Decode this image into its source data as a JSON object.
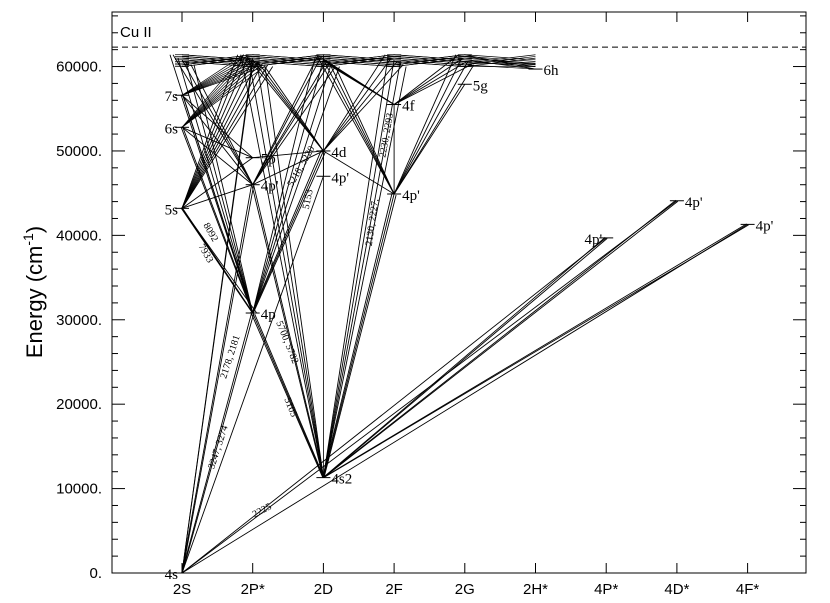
{
  "chart_data": {
    "type": "diagram",
    "title": "Cu II",
    "ylabel": "Energy (cm",
    "ylabel_sup": "-1",
    "ylabel_close": ")",
    "ylim": [
      0,
      64000
    ],
    "yticks": [
      0,
      10000,
      20000,
      30000,
      40000,
      50000,
      60000
    ],
    "ytick_labels": [
      "0.",
      "10000.",
      "20000.",
      "30000.",
      "40000.",
      "50000.",
      "60000."
    ],
    "ionization_limit": 62300,
    "categories": [
      "2S",
      "2P*",
      "2D",
      "2F",
      "2G",
      "2H*",
      "4P*",
      "4D*",
      "4F*"
    ],
    "levels": [
      {
        "col": 0,
        "energy": 0,
        "label": "4s",
        "label_side": "left"
      },
      {
        "col": 0,
        "energy": 43200,
        "label": "5s",
        "label_side": "left"
      },
      {
        "col": 0,
        "energy": 52800,
        "label": "6s",
        "label_side": "left"
      },
      {
        "col": 0,
        "energy": 56600,
        "label": "7s",
        "label_side": "left"
      },
      {
        "col": 1,
        "energy": 30800,
        "label": "4p",
        "label_side": "right"
      },
      {
        "col": 1,
        "energy": 46000,
        "label": "4p'",
        "label_side": "right"
      },
      {
        "col": 1,
        "energy": 49200,
        "label": "5p",
        "label_side": "right"
      },
      {
        "col": 2,
        "energy": 11300,
        "label": "4s2",
        "label_side": "right"
      },
      {
        "col": 2,
        "energy": 47000,
        "label": "4p'",
        "label_side": "right"
      },
      {
        "col": 2,
        "energy": 50000,
        "label": "4d",
        "label_side": "right"
      },
      {
        "col": 3,
        "energy": 44900,
        "label": "4p'",
        "label_side": "right"
      },
      {
        "col": 3,
        "energy": 55500,
        "label": "4f",
        "label_side": "right"
      },
      {
        "col": 4,
        "energy": 57900,
        "label": "5g",
        "label_side": "right"
      },
      {
        "col": 5,
        "energy": 59700,
        "label": "6h",
        "label_side": "right"
      },
      {
        "col": 6,
        "energy": 39700,
        "label": "4p'",
        "label_side": "left"
      },
      {
        "col": 7,
        "energy": 44100,
        "label": "4p'",
        "label_side": "right"
      },
      {
        "col": 8,
        "energy": 41300,
        "label": "4p'",
        "label_side": "right"
      }
    ],
    "wavelength_labels": [
      {
        "text": "2225",
        "col": 1.15,
        "energy": 7100,
        "angle": -28
      },
      {
        "text": "3247, 3274",
        "col": 0.55,
        "energy": 14800,
        "angle": -72
      },
      {
        "text": "2178, 2181",
        "col": 0.72,
        "energy": 25500,
        "angle": -72
      },
      {
        "text": "5105",
        "col": 1.5,
        "energy": 19500,
        "angle": 68
      },
      {
        "text": "5700, 5782",
        "col": 1.45,
        "energy": 27200,
        "angle": 68
      },
      {
        "text": "8092",
        "col": 0.37,
        "energy": 40200,
        "angle": 60
      },
      {
        "text": "7933",
        "col": 0.3,
        "energy": 37700,
        "angle": 60
      },
      {
        "text": "5218, 5220",
        "col": 1.72,
        "energy": 48000,
        "angle": -60
      },
      {
        "text": "5153",
        "col": 1.82,
        "energy": 44200,
        "angle": -78
      },
      {
        "text": "2230, 2293",
        "col": 2.93,
        "energy": 51800,
        "angle": -80
      },
      {
        "text": "2130, 2227,",
        "col": 2.73,
        "energy": 41500,
        "angle": -82
      }
    ]
  }
}
